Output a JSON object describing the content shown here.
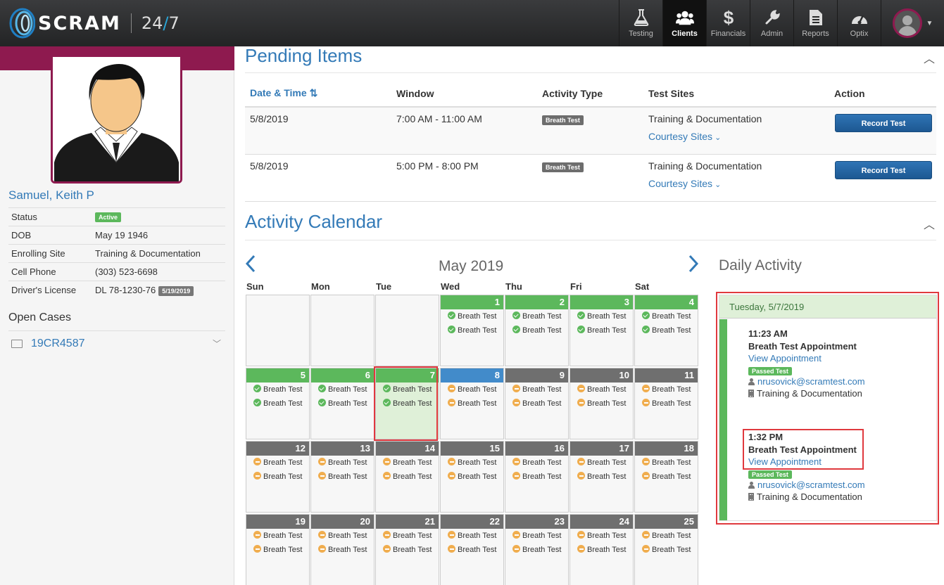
{
  "header": {
    "logo_text": "SCRAM",
    "logo_247_a": "24",
    "logo_247_slash": "/",
    "logo_247_b": "7",
    "nav": [
      {
        "label": "Testing",
        "icon": "flask-icon"
      },
      {
        "label": "Clients",
        "icon": "users-icon",
        "active": true
      },
      {
        "label": "Financials",
        "icon": "dollar-icon"
      },
      {
        "label": "Admin",
        "icon": "wrench-icon"
      },
      {
        "label": "Reports",
        "icon": "report-icon"
      },
      {
        "label": "Optix",
        "icon": "gauge-icon"
      }
    ]
  },
  "client": {
    "name": "Samuel, Keith P",
    "fields": [
      {
        "key": "Status",
        "value": "",
        "badge": "Active"
      },
      {
        "key": "DOB",
        "value": "May 19 1946"
      },
      {
        "key": "Enrolling Site",
        "value": "Training & Documentation"
      },
      {
        "key": "Cell Phone",
        "value": "(303) 523-6698"
      },
      {
        "key": "Driver's License",
        "value": "DL 78-1230-76",
        "badge": "5/19/2019"
      }
    ],
    "open_cases_title": "Open Cases",
    "cases": [
      "19CR4587"
    ]
  },
  "pending": {
    "title": "Pending Items",
    "columns": [
      "Date & Time",
      "Window",
      "Activity Type",
      "Test Sites",
      "Action"
    ],
    "rows": [
      {
        "date": "5/8/2019",
        "window": "7:00 AM - 11:00 AM",
        "type": "Breath Test",
        "site": "Training & Documentation",
        "courtesy": "Courtesy Sites",
        "action": "Record Test"
      },
      {
        "date": "5/8/2019",
        "window": "5:00 PM - 8:00 PM",
        "type": "Breath Test",
        "site": "Training & Documentation",
        "courtesy": "Courtesy Sites",
        "action": "Record Test"
      }
    ]
  },
  "calendar": {
    "title": "Activity Calendar",
    "month": "May 2019",
    "days_of_week": [
      "Sun",
      "Mon",
      "Tue",
      "Wed",
      "Thu",
      "Fri",
      "Sat"
    ],
    "event_label": "Breath Test",
    "selected_day": 7,
    "today": 8,
    "passed_through": 7,
    "weeks": [
      [
        null,
        null,
        null,
        1,
        2,
        3,
        4
      ],
      [
        5,
        6,
        7,
        8,
        9,
        10,
        11
      ],
      [
        12,
        13,
        14,
        15,
        16,
        17,
        18
      ],
      [
        19,
        20,
        21,
        22,
        23,
        24,
        25
      ]
    ],
    "colors": {
      "passed": "#5cb85c",
      "pending": "#f0ad4e",
      "today": "#428bca",
      "future": "#6f6f6f"
    }
  },
  "daily": {
    "title": "Daily Activity",
    "date": "Tuesday, 5/7/2019",
    "appointments": [
      {
        "time": "11:23 AM",
        "title": "Breath Test Appointment",
        "link": "View Appointment",
        "status": "Passed Test",
        "email": "nrusovick@scramtest.com",
        "site": "Training & Documentation"
      },
      {
        "time": "1:32 PM",
        "title": "Breath Test Appointment",
        "link": "View Appointment",
        "status": "Passed Test",
        "email": "nrusovick@scramtest.com",
        "site": "Training & Documentation"
      }
    ]
  }
}
